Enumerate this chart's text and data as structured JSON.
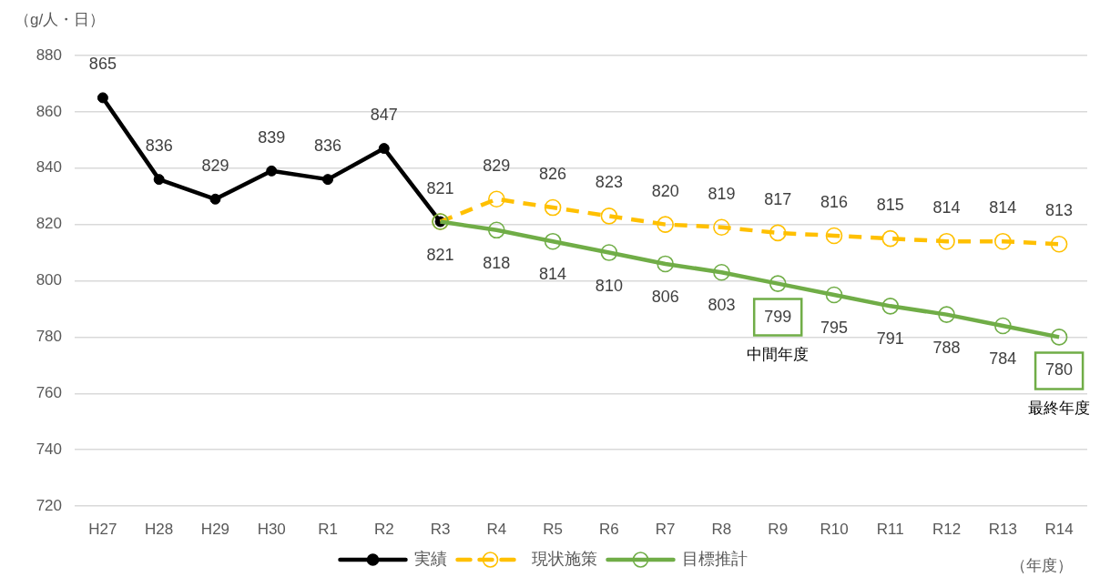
{
  "chart_data": {
    "type": "line",
    "ylabel": "（g/人・日）",
    "xlabel": "（年度）",
    "categories": [
      "H27",
      "H28",
      "H29",
      "H30",
      "R1",
      "R2",
      "R3",
      "R4",
      "R5",
      "R6",
      "R7",
      "R8",
      "R9",
      "R10",
      "R11",
      "R12",
      "R13",
      "R14"
    ],
    "series": [
      {
        "name": "実績",
        "color": "#000000",
        "values": [
          865,
          836,
          829,
          839,
          836,
          847,
          821,
          null,
          null,
          null,
          null,
          null,
          null,
          null,
          null,
          null,
          null,
          null
        ]
      },
      {
        "name": "現状施策",
        "color": "#ffc000",
        "line_style": "dashed",
        "values": [
          null,
          null,
          null,
          null,
          null,
          null,
          821,
          829,
          826,
          823,
          820,
          819,
          817,
          816,
          815,
          814,
          814,
          813
        ],
        "value_labels": [
          null,
          null,
          null,
          null,
          null,
          null,
          null,
          "829",
          "826",
          "823",
          "820",
          "819",
          "817",
          "816",
          "815",
          "814",
          "814",
          "813"
        ]
      },
      {
        "name": "目標推計",
        "color": "#70ad47",
        "values": [
          null,
          null,
          null,
          null,
          null,
          null,
          821,
          818,
          814,
          810,
          806,
          803,
          799,
          795,
          791,
          788,
          784,
          780
        ]
      }
    ],
    "ylim": [
      720,
      880
    ],
    "yticks": [
      720,
      740,
      760,
      780,
      800,
      820,
      840,
      860,
      880
    ],
    "grid": "y",
    "legend": "bottom",
    "data_labels": true,
    "marker": "circle",
    "line_style": "solid",
    "annotations": [
      "中間年度",
      "最終年度"
    ]
  }
}
